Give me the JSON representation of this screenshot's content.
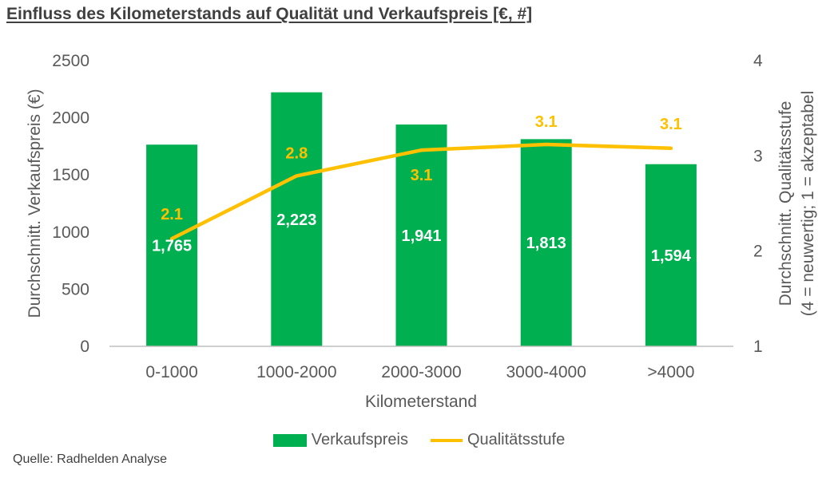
{
  "header": {
    "title": "Einfluss des Kilometerstands auf Qualität und Verkaufspreis [€, #]"
  },
  "footer": {
    "source": "Quelle: Radhelden Analyse"
  },
  "colors": {
    "bar": "#00B050",
    "line": "#FFC000",
    "axis": "#595959"
  },
  "chart_data": {
    "type": "bar",
    "categories": [
      "0-1000",
      "1000-2000",
      "2000-3000",
      "3000-4000",
      ">4000"
    ],
    "series": [
      {
        "name": "Verkaufspreis",
        "type": "bar",
        "axis": "left",
        "values": [
          1765,
          2223,
          1941,
          1813,
          1594
        ],
        "labels": [
          "1,765",
          "2,223",
          "1,941",
          "1,813",
          "1,594"
        ]
      },
      {
        "name": "Qualitätsstufe",
        "type": "line",
        "axis": "right",
        "values": [
          2.13,
          2.79,
          3.06,
          3.12,
          3.08
        ],
        "labels": [
          "2.1",
          "2.8",
          "3.1",
          "3.1",
          "3.1"
        ]
      }
    ],
    "xlabel": "Kilometerstand",
    "ylabel": "Durchschnitt. Verkaufspreis (€)",
    "y2label": [
      "Durchschnitt. Qualitätsstufe",
      "(4 = neuwertig; 1 = akzeptabel"
    ],
    "ylim": [
      0,
      2500
    ],
    "yticks": [
      "0",
      "500",
      "1000",
      "1500",
      "2000",
      "2500"
    ],
    "y2lim": [
      1,
      4
    ],
    "y2ticks": [
      "1",
      "2",
      "3",
      "4"
    ],
    "grid": false,
    "legend_position": "bottom"
  }
}
